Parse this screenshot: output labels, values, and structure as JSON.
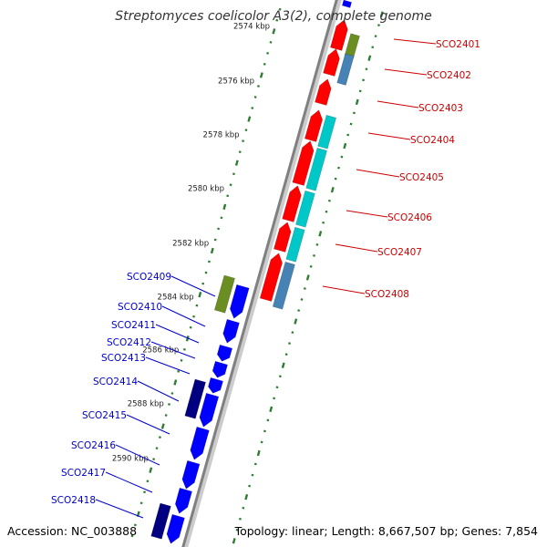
{
  "title": "Streptomyces coelicolor A3(2), complete genome",
  "footer": {
    "accession": "Accession: NC_003888",
    "topology": "Topology: linear; Length: 8,667,507 bp; Genes: 7,854"
  },
  "colors": {
    "backbone": "#808080",
    "tick": "#2e7d32",
    "right_labels": "#cc0000",
    "left_labels": "#0000cc",
    "forward_gene": "#0000ff",
    "forward_gene_dark": "#000080",
    "forward_feature": "#6b8e23",
    "reverse_gene": "#ff0000",
    "reverse_feature": "#00c8c8",
    "reverse_feature_alt": "#4682b4"
  },
  "scale_labels": [
    "2574 kbp",
    "2576 kbp",
    "2578 kbp",
    "2580 kbp",
    "2582 kbp",
    "2584 kbp",
    "2586 kbp",
    "2588 kbp",
    "2590 kbp"
  ],
  "right_genes": [
    "SCO2401",
    "SCO2402",
    "SCO2403",
    "SCO2404",
    "SCO2405",
    "SCO2406",
    "SCO2407",
    "SCO2408"
  ],
  "left_genes": [
    "SCO2409",
    "SCO2410",
    "SCO2411",
    "SCO2412",
    "SCO2413",
    "SCO2414",
    "SCO2415",
    "SCO2416",
    "SCO2417",
    "SCO2418"
  ]
}
